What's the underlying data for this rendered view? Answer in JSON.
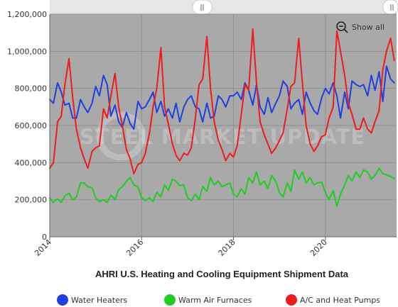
{
  "chart_data": {
    "type": "line",
    "title": "AHRI U.S. Heating and Cooling Equipment Shipment Data",
    "xlabel": "",
    "ylabel": "",
    "xlim": [
      2014.0,
      2021.55
    ],
    "ylim": [
      0,
      1200000
    ],
    "y_ticks": [
      0,
      200000,
      400000,
      600000,
      800000,
      1000000,
      1200000
    ],
    "y_tick_labels": [
      "0",
      "200,000",
      "400,000",
      "600,000",
      "800,000",
      "1,000,000",
      "1,200,000"
    ],
    "x_ticks": [
      2014,
      2016,
      2018,
      2020
    ],
    "x_tick_labels": [
      "2014",
      "2016",
      "2018",
      "2020"
    ],
    "grid": true,
    "legend_position": "bottom",
    "series": [
      {
        "name": "Water Heaters",
        "color": "#1f3fe0",
        "x": [
          2014.0,
          2014.08,
          2014.17,
          2014.25,
          2014.33,
          2014.42,
          2014.5,
          2014.58,
          2014.67,
          2014.75,
          2014.83,
          2014.92,
          2015.0,
          2015.08,
          2015.17,
          2015.25,
          2015.33,
          2015.42,
          2015.5,
          2015.58,
          2015.67,
          2015.75,
          2015.83,
          2015.92,
          2016.0,
          2016.08,
          2016.17,
          2016.25,
          2016.33,
          2016.42,
          2016.5,
          2016.58,
          2016.67,
          2016.75,
          2016.83,
          2016.92,
          2017.0,
          2017.08,
          2017.17,
          2017.25,
          2017.33,
          2017.42,
          2017.5,
          2017.58,
          2017.67,
          2017.75,
          2017.83,
          2017.92,
          2018.0,
          2018.08,
          2018.17,
          2018.25,
          2018.33,
          2018.42,
          2018.5,
          2018.58,
          2018.67,
          2018.75,
          2018.83,
          2018.92,
          2019.0,
          2019.08,
          2019.17,
          2019.25,
          2019.33,
          2019.42,
          2019.5,
          2019.58,
          2019.67,
          2019.75,
          2019.83,
          2019.92,
          2020.0,
          2020.08,
          2020.17,
          2020.25,
          2020.33,
          2020.42,
          2020.5,
          2020.58,
          2020.67,
          2020.75,
          2020.83,
          2020.92,
          2021.0,
          2021.08,
          2021.17,
          2021.25,
          2021.33,
          2021.42,
          2021.5
        ],
        "y": [
          740000,
          720000,
          830000,
          780000,
          710000,
          720000,
          640000,
          640000,
          740000,
          700000,
          670000,
          720000,
          810000,
          760000,
          870000,
          820000,
          650000,
          710000,
          620000,
          590000,
          670000,
          610000,
          580000,
          730000,
          690000,
          700000,
          740000,
          780000,
          670000,
          730000,
          650000,
          690000,
          640000,
          720000,
          620000,
          700000,
          740000,
          760000,
          700000,
          690000,
          620000,
          720000,
          640000,
          650000,
          760000,
          740000,
          700000,
          760000,
          760000,
          780000,
          740000,
          830000,
          790000,
          710000,
          820000,
          700000,
          660000,
          750000,
          670000,
          720000,
          760000,
          840000,
          810000,
          690000,
          720000,
          740000,
          660000,
          780000,
          720000,
          680000,
          660000,
          750000,
          800000,
          770000,
          830000,
          760000,
          640000,
          780000,
          690000,
          840000,
          820000,
          810000,
          820000,
          760000,
          870000,
          790000,
          890000,
          730000,
          920000,
          850000,
          830000
        ]
      },
      {
        "name": "Warm Air Furnaces",
        "color": "#22cc22",
        "x": [
          2014.0,
          2014.08,
          2014.17,
          2014.25,
          2014.33,
          2014.42,
          2014.5,
          2014.58,
          2014.67,
          2014.75,
          2014.83,
          2014.92,
          2015.0,
          2015.08,
          2015.17,
          2015.25,
          2015.33,
          2015.42,
          2015.5,
          2015.58,
          2015.67,
          2015.75,
          2015.83,
          2015.92,
          2016.0,
          2016.08,
          2016.17,
          2016.25,
          2016.33,
          2016.42,
          2016.5,
          2016.58,
          2016.67,
          2016.75,
          2016.83,
          2016.92,
          2017.0,
          2017.08,
          2017.17,
          2017.25,
          2017.33,
          2017.42,
          2017.5,
          2017.58,
          2017.67,
          2017.75,
          2017.83,
          2017.92,
          2018.0,
          2018.08,
          2018.17,
          2018.25,
          2018.33,
          2018.42,
          2018.5,
          2018.58,
          2018.67,
          2018.75,
          2018.83,
          2018.92,
          2019.0,
          2019.08,
          2019.17,
          2019.25,
          2019.33,
          2019.42,
          2019.5,
          2019.58,
          2019.67,
          2019.75,
          2019.83,
          2019.92,
          2020.0,
          2020.08,
          2020.17,
          2020.25,
          2020.33,
          2020.42,
          2020.5,
          2020.58,
          2020.67,
          2020.75,
          2020.83,
          2020.92,
          2021.0,
          2021.08,
          2021.17,
          2021.25,
          2021.33,
          2021.42,
          2021.5
        ],
        "y": [
          210000,
          185000,
          205000,
          185000,
          220000,
          235000,
          200000,
          215000,
          290000,
          290000,
          270000,
          265000,
          210000,
          190000,
          200000,
          185000,
          225000,
          200000,
          255000,
          270000,
          300000,
          320000,
          280000,
          270000,
          210000,
          195000,
          210000,
          190000,
          240000,
          215000,
          280000,
          250000,
          310000,
          300000,
          275000,
          280000,
          210000,
          195000,
          230000,
          200000,
          270000,
          245000,
          320000,
          280000,
          300000,
          270000,
          280000,
          290000,
          230000,
          215000,
          260000,
          230000,
          320000,
          290000,
          350000,
          280000,
          300000,
          260000,
          330000,
          300000,
          240000,
          215000,
          290000,
          245000,
          360000,
          310000,
          350000,
          290000,
          320000,
          280000,
          290000,
          295000,
          240000,
          200000,
          250000,
          165000,
          230000,
          280000,
          330000,
          300000,
          350000,
          320000,
          360000,
          350000,
          310000,
          330000,
          370000,
          340000,
          335000,
          325000,
          315000
        ]
      },
      {
        "name": "A/C and Heat Pumps",
        "color": "#ee1c1c",
        "x": [
          2014.0,
          2014.08,
          2014.17,
          2014.25,
          2014.33,
          2014.42,
          2014.5,
          2014.58,
          2014.67,
          2014.75,
          2014.83,
          2014.92,
          2015.0,
          2015.08,
          2015.17,
          2015.25,
          2015.33,
          2015.42,
          2015.5,
          2015.58,
          2015.67,
          2015.75,
          2015.83,
          2015.92,
          2016.0,
          2016.08,
          2016.17,
          2016.25,
          2016.33,
          2016.42,
          2016.5,
          2016.58,
          2016.67,
          2016.75,
          2016.83,
          2016.92,
          2017.0,
          2017.08,
          2017.17,
          2017.25,
          2017.33,
          2017.42,
          2017.5,
          2017.58,
          2017.67,
          2017.75,
          2017.83,
          2017.92,
          2018.0,
          2018.08,
          2018.17,
          2018.25,
          2018.33,
          2018.42,
          2018.5,
          2018.58,
          2018.67,
          2018.75,
          2018.83,
          2018.92,
          2019.0,
          2019.08,
          2019.17,
          2019.25,
          2019.33,
          2019.42,
          2019.5,
          2019.58,
          2019.67,
          2019.75,
          2019.83,
          2019.92,
          2020.0,
          2020.08,
          2020.17,
          2020.25,
          2020.33,
          2020.42,
          2020.5,
          2020.58,
          2020.67,
          2020.75,
          2020.83,
          2020.92,
          2021.0,
          2021.08,
          2021.17,
          2021.25,
          2021.33,
          2021.42,
          2021.5
        ],
        "y": [
          370000,
          400000,
          620000,
          650000,
          820000,
          960000,
          750000,
          580000,
          480000,
          420000,
          370000,
          460000,
          480000,
          490000,
          690000,
          640000,
          760000,
          880000,
          700000,
          600000,
          470000,
          420000,
          340000,
          390000,
          400000,
          450000,
          560000,
          700000,
          800000,
          1020000,
          700000,
          610000,
          500000,
          440000,
          410000,
          450000,
          440000,
          480000,
          640000,
          820000,
          850000,
          1080000,
          800000,
          620000,
          520000,
          470000,
          410000,
          450000,
          430000,
          490000,
          660000,
          820000,
          790000,
          1120000,
          830000,
          620000,
          550000,
          500000,
          450000,
          480000,
          520000,
          560000,
          690000,
          810000,
          830000,
          1070000,
          830000,
          600000,
          500000,
          460000,
          490000,
          540000,
          550000,
          640000,
          700000,
          1110000,
          1000000,
          870000,
          720000,
          660000,
          580000,
          580000,
          640000,
          580000,
          560000,
          620000,
          680000,
          900000,
          1000000,
          1070000,
          950000
        ]
      }
    ]
  },
  "toolbar": {
    "show_all_label": "Show all",
    "show_all_icon": "zoom-out-icon"
  },
  "watermark": {
    "text": "STEEL MARKET UPDATE"
  },
  "colors": {
    "plot_background": "#a9a9a9",
    "scrollbar_track": "#e6e6e6",
    "gridline": "#909090"
  }
}
